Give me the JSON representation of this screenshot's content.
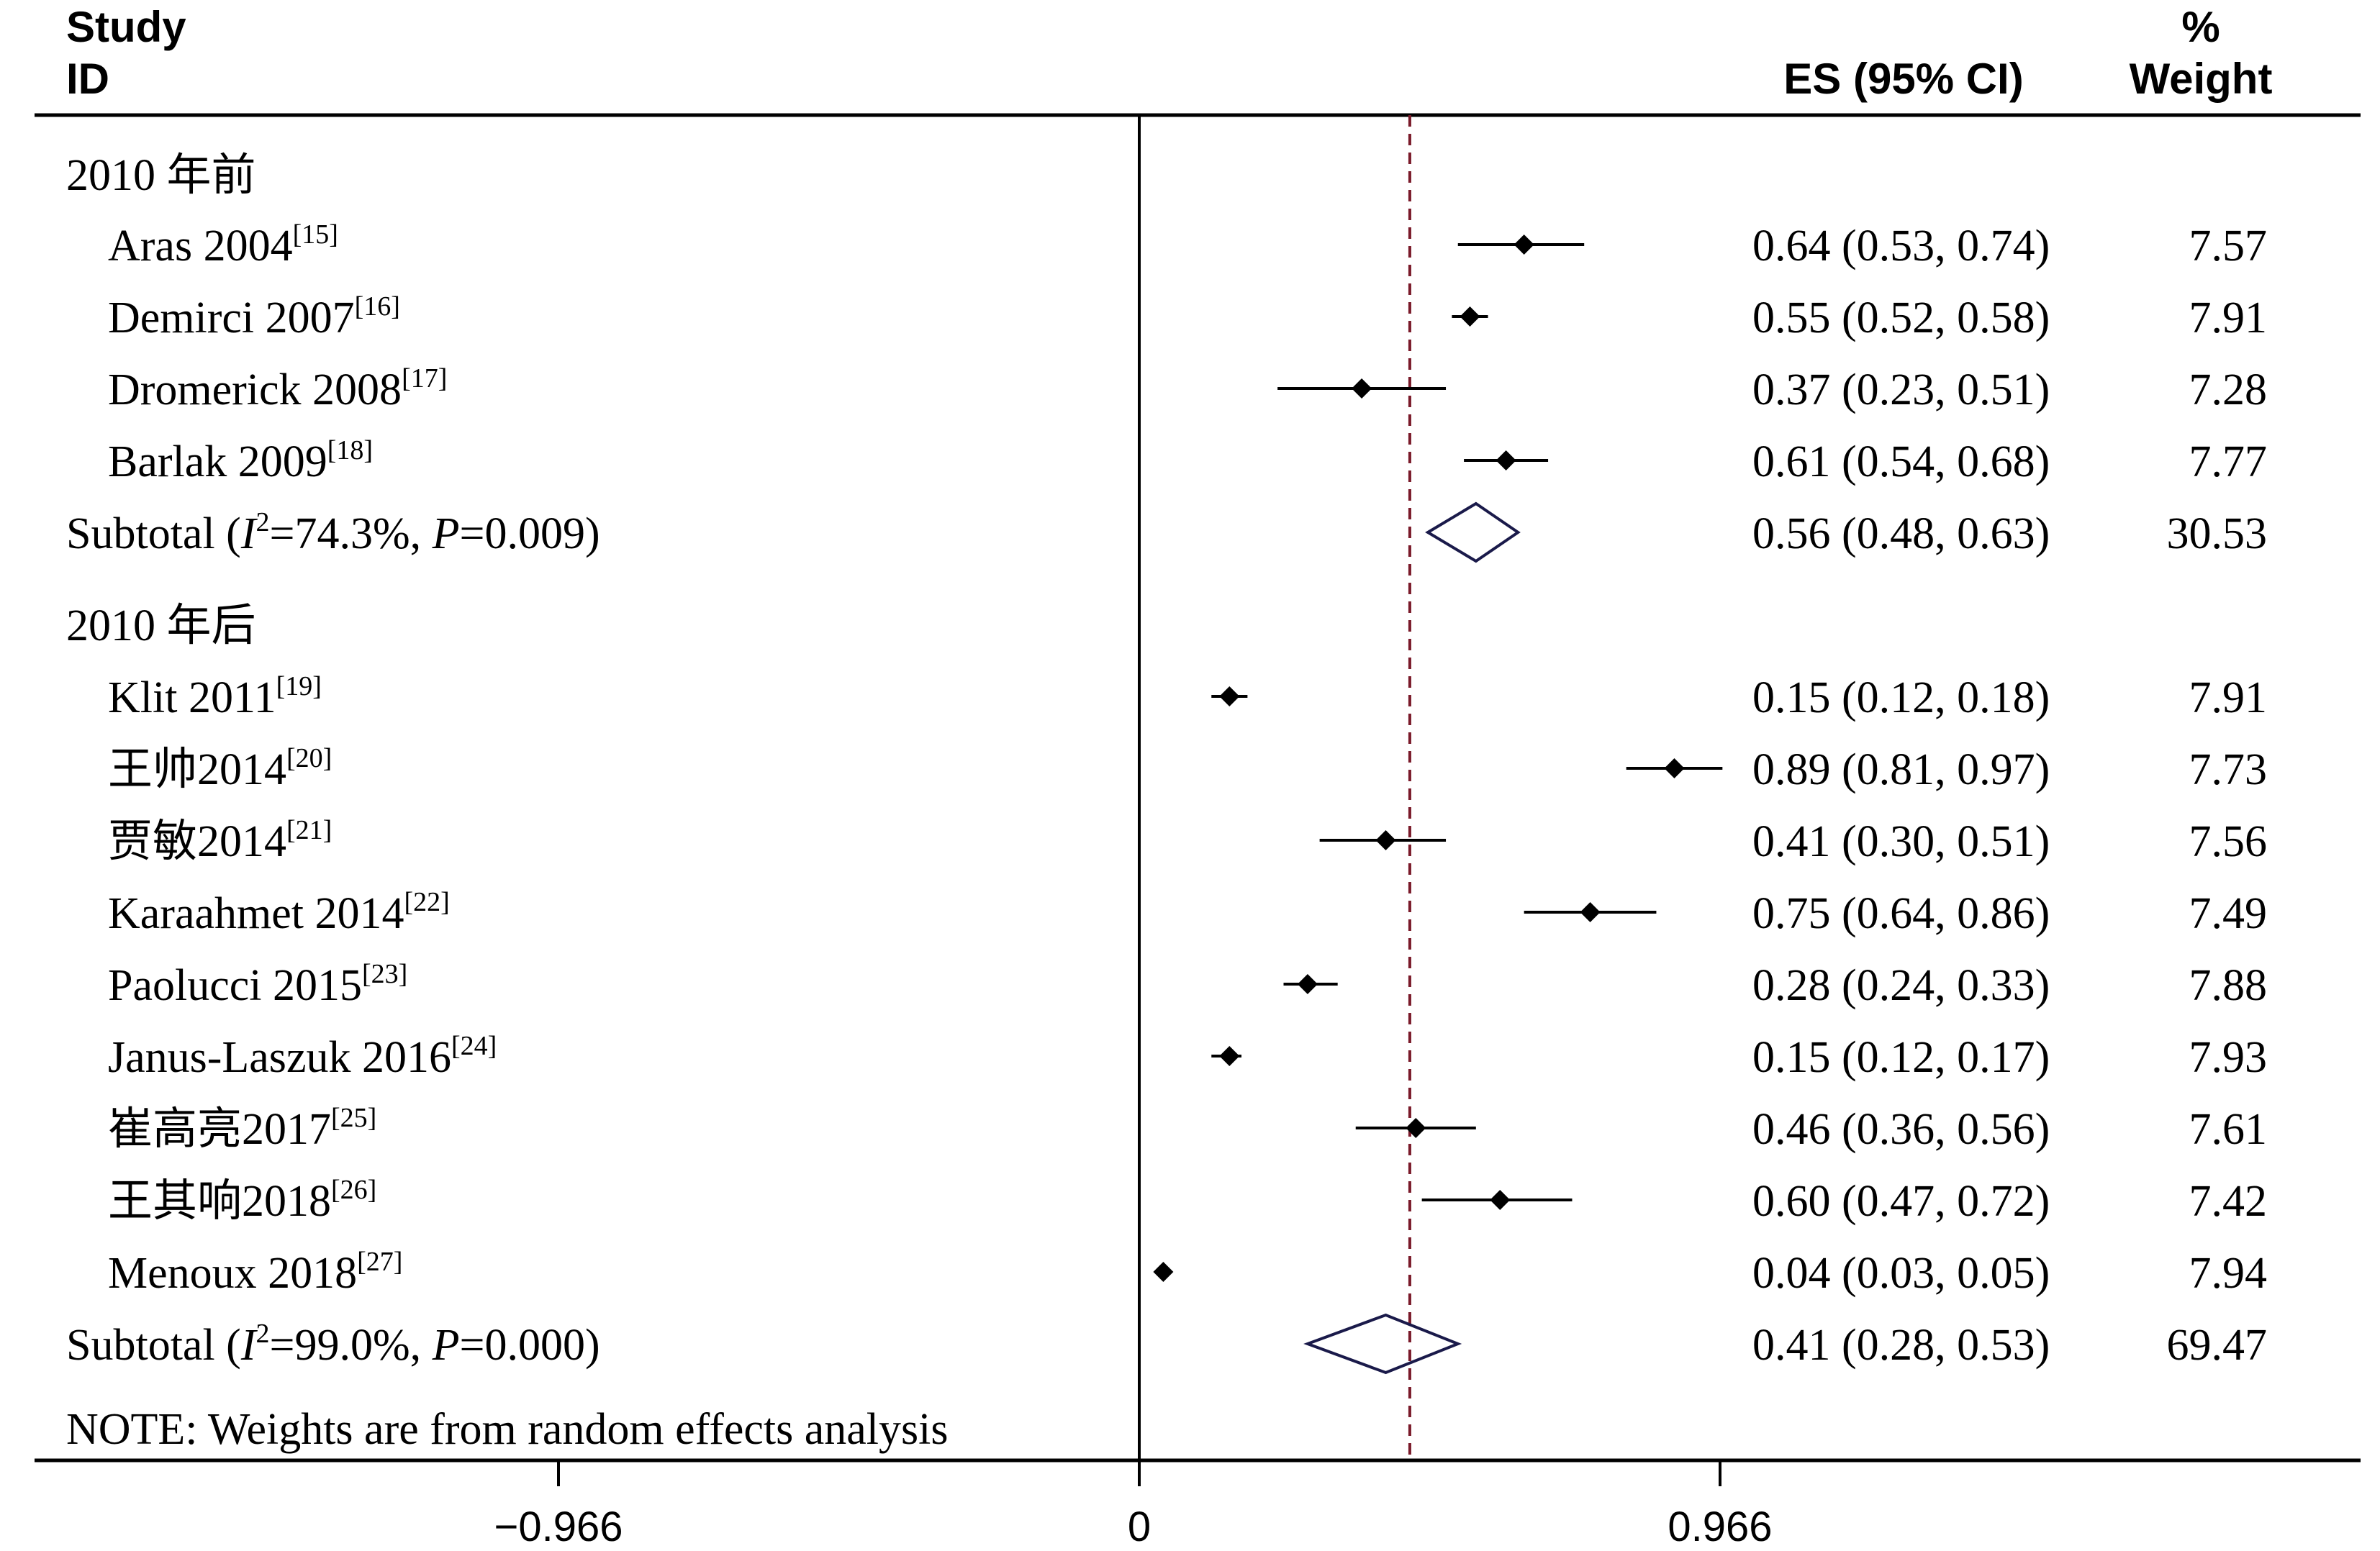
{
  "chart_data": {
    "type": "forest",
    "headers": {
      "study_line1": "Study",
      "study_line2": "ID",
      "es": "ES (95% CI)",
      "weight_line1": "%",
      "weight_line2": "Weight"
    },
    "groups": [
      {
        "label": "2010 年前",
        "studies": [
          {
            "name": "Aras 2004",
            "ref": "[15]",
            "es": 0.64,
            "lo": 0.53,
            "hi": 0.74,
            "es_text": "0.64 (0.53, 0.74)",
            "weight": "7.57"
          },
          {
            "name": "Demirci 2007",
            "ref": "[16]",
            "es": 0.55,
            "lo": 0.52,
            "hi": 0.58,
            "es_text": "0.55 (0.52, 0.58)",
            "weight": "7.91"
          },
          {
            "name": "Dromerick 2008",
            "ref": "[17]",
            "es": 0.37,
            "lo": 0.23,
            "hi": 0.51,
            "es_text": "0.37 (0.23, 0.51)",
            "weight": "7.28"
          },
          {
            "name": "Barlak 2009",
            "ref": "[18]",
            "es": 0.61,
            "lo": 0.54,
            "hi": 0.68,
            "es_text": "0.61 (0.54, 0.68)",
            "weight": "7.77"
          }
        ],
        "subtotal": {
          "prefix": "Subtotal  (",
          "i2_letter": "I",
          "i2_exp": "2",
          "i2_value": "=74.3%, ",
          "p_letter": "P",
          "p_value": "=0.009)",
          "es": 0.56,
          "lo": 0.48,
          "hi": 0.63,
          "es_text": "0.56 (0.48, 0.63)",
          "weight": "30.53"
        }
      },
      {
        "label": "2010 年后",
        "studies": [
          {
            "name": "Klit 2011",
            "ref": "[19]",
            "es": 0.15,
            "lo": 0.12,
            "hi": 0.18,
            "es_text": "0.15 (0.12, 0.18)",
            "weight": "7.91"
          },
          {
            "name": "王帅2014",
            "ref": "[20]",
            "es": 0.89,
            "lo": 0.81,
            "hi": 0.97,
            "es_text": "0.89 (0.81, 0.97)",
            "weight": "7.73"
          },
          {
            "name": "贾敏2014",
            "ref": "[21]",
            "es": 0.41,
            "lo": 0.3,
            "hi": 0.51,
            "es_text": "0.41 (0.30, 0.51)",
            "weight": "7.56"
          },
          {
            "name": "Karaahmet 2014",
            "ref": "[22]",
            "es": 0.75,
            "lo": 0.64,
            "hi": 0.86,
            "es_text": "0.75 (0.64, 0.86)",
            "weight": "7.49"
          },
          {
            "name": "Paolucci 2015",
            "ref": "[23]",
            "es": 0.28,
            "lo": 0.24,
            "hi": 0.33,
            "es_text": "0.28 (0.24, 0.33)",
            "weight": "7.88"
          },
          {
            "name": "Janus-Laszuk 2016",
            "ref": "[24]",
            "es": 0.15,
            "lo": 0.12,
            "hi": 0.17,
            "es_text": "0.15 (0.12, 0.17)",
            "weight": "7.93"
          },
          {
            "name": "崔高亮2017",
            "ref": "[25]",
            "es": 0.46,
            "lo": 0.36,
            "hi": 0.56,
            "es_text": "0.46 (0.36, 0.56)",
            "weight": "7.61"
          },
          {
            "name": "王其响2018",
            "ref": "[26]",
            "es": 0.6,
            "lo": 0.47,
            "hi": 0.72,
            "es_text": "0.60 (0.47, 0.72)",
            "weight": "7.42"
          },
          {
            "name": "Menoux 2018",
            "ref": "[27]",
            "es": 0.04,
            "lo": 0.03,
            "hi": 0.05,
            "es_text": "0.04 (0.03, 0.05)",
            "weight": "7.94"
          }
        ],
        "subtotal": {
          "prefix": "Subtotal  (",
          "i2_letter": "I",
          "i2_exp": "2",
          "i2_value": "=99.0%, ",
          "p_letter": "P",
          "p_value": "=0.000)",
          "es": 0.41,
          "lo": 0.28,
          "hi": 0.53,
          "es_text": "0.41 (0.28, 0.53)",
          "weight": "69.47"
        }
      }
    ],
    "overall_es": 0.45,
    "note": "NOTE: Weights are from random effects analysis",
    "xaxis": {
      "ticks": [
        -0.966,
        0,
        0.966
      ],
      "tick_labels": [
        "−0.966",
        "0",
        "0.966"
      ],
      "range": [
        -1.9,
        2.0
      ]
    },
    "colors": {
      "ink": "#000000",
      "diamond": "#1a1a4a",
      "overall_line": "#7a1a2a"
    }
  }
}
